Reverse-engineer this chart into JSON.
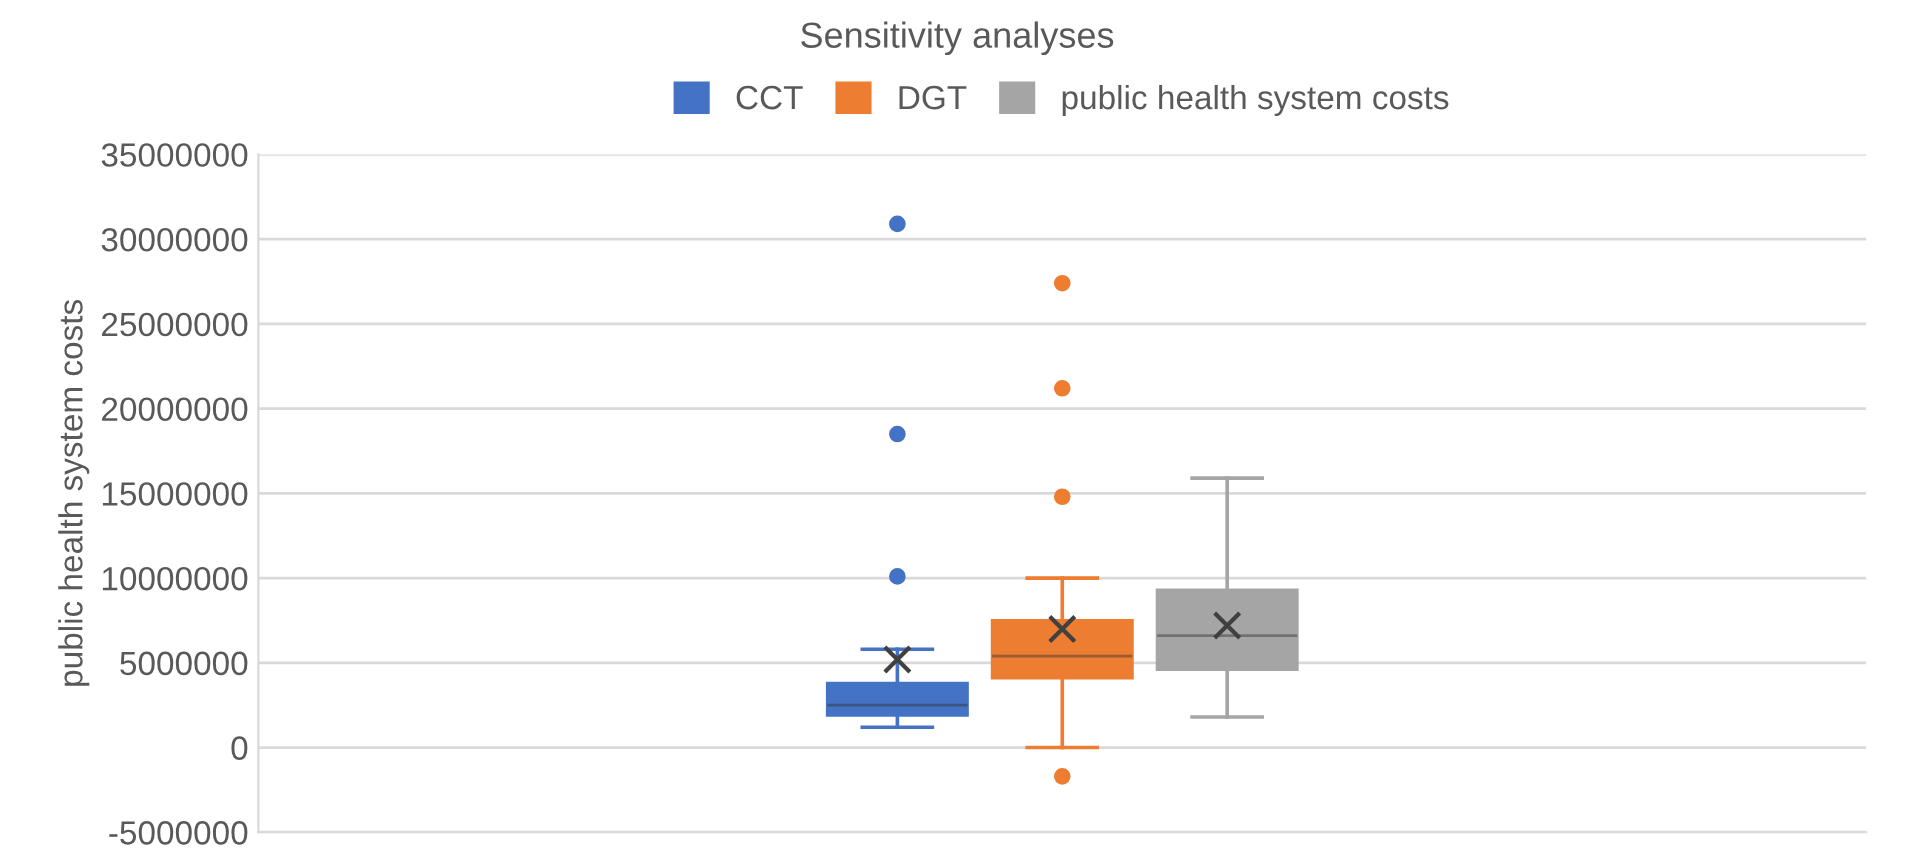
{
  "chart_data": {
    "type": "box",
    "title": "Sensitivity analyses",
    "ylabel": "public health system costs",
    "categories": [
      null
    ],
    "series": [
      {
        "name": "CCT",
        "color": "#4472c4",
        "boxes": [
          {
            "low": 1200000,
            "q1": 1900000,
            "median": 2500000,
            "q3": 3800000,
            "high": 5800000,
            "mean": 5200000,
            "outliers": [
              10100000,
              18500000,
              30900000
            ]
          }
        ]
      },
      {
        "name": "DGT",
        "color": "#ed7d31",
        "boxes": [
          {
            "low": 0,
            "q1": 4100000,
            "median": 5400000,
            "q3": 7500000,
            "high": 10000000,
            "mean": 7000000,
            "outliers": [
              -1700000,
              14800000,
              21200000,
              27400000
            ]
          }
        ]
      },
      {
        "name": "public health system costs",
        "color": "#a5a5a5",
        "boxes": [
          {
            "low": 1800000,
            "q1": 4600000,
            "median": 6600000,
            "q3": 9300000,
            "high": 15900000,
            "mean": 7200000
          }
        ]
      }
    ],
    "ylim": [
      -5000000,
      35000000
    ],
    "yticks": [
      -5000000,
      0,
      5000000,
      10000000,
      15000000,
      20000000,
      25000000,
      30000000,
      35000000
    ],
    "grid": "y",
    "legend": "top"
  }
}
